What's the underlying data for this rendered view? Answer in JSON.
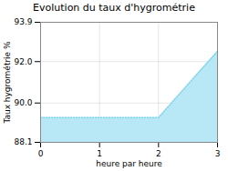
{
  "chart_data": {
    "type": "area",
    "title": "Evolution du taux d'hygrométrie",
    "x_label": "heure par heure",
    "y_label": "Taux hygrométrie %",
    "x": [
      0,
      2,
      3
    ],
    "series": [
      {
        "type": "area",
        "color": "#b8e8f5",
        "values": [
          89.3,
          89.3,
          92.5
        ]
      },
      {
        "type": "line",
        "color": "#7dd4ea",
        "line_style": "dotted",
        "values": [
          89.3,
          89.3,
          92.5
        ]
      }
    ],
    "xlim": [
      0,
      3
    ],
    "ylim": [
      88.1,
      93.9
    ],
    "xticks": [
      0,
      1,
      2,
      3
    ],
    "yticks": [
      88.1,
      {
        "value": 90.0,
        "label": "90.0"
      },
      {
        "value": 92.0,
        "label": "92.0"
      },
      93.9
    ],
    "grid": true
  }
}
